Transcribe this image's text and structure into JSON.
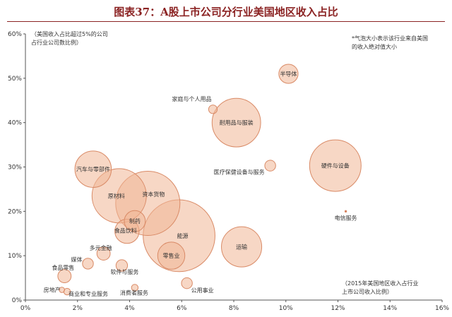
{
  "title": "图表37：A股上市公司分行业美国地区收入占比",
  "chart_data": {
    "type": "scatter",
    "x_ticks": [
      "0%",
      "2%",
      "4%",
      "6%",
      "8%",
      "10%",
      "12%",
      "14%",
      "16%"
    ],
    "y_ticks": [
      "0%",
      "10%",
      "20%",
      "30%",
      "40%",
      "50%",
      "60%"
    ],
    "xlim": [
      0,
      16
    ],
    "ylim": [
      0,
      60
    ],
    "grid": false,
    "annotations": {
      "y_axis_note": [
        "（美国收入占比超过5%的公司",
        "占行业公司数比例）"
      ],
      "size_note": [
        "*气泡大小表示该行业来自美国",
        "的收入绝对值大小"
      ],
      "x_axis_note": [
        "（2015年美国地区收入占行业",
        "上市公司收入比例）"
      ]
    },
    "points": [
      {
        "label": "半导体",
        "x": 10.1,
        "y": 51,
        "size": 2.5
      },
      {
        "label": "家庭与个人用品",
        "x": 7.2,
        "y": 43,
        "size": 0.5
      },
      {
        "label": "耐用品与服装",
        "x": 8.1,
        "y": 40,
        "size": 16
      },
      {
        "label": "医疗保健设备与服务",
        "x": 9.4,
        "y": 30.3,
        "size": 0.8
      },
      {
        "label": "硬件与设备",
        "x": 11.9,
        "y": 30.3,
        "size": 18
      },
      {
        "label": "电信服务",
        "x": 12.3,
        "y": 20,
        "size": 0
      },
      {
        "label": "汽车与零部件",
        "x": 2.6,
        "y": 29.5,
        "size": 9
      },
      {
        "label": "原材料",
        "x": 3.6,
        "y": 23.5,
        "size": 20
      },
      {
        "label": "资本货物",
        "x": 4.7,
        "y": 21.8,
        "size": 28
      },
      {
        "label": "制药",
        "x": 4.2,
        "y": 17.8,
        "size": 3
      },
      {
        "label": "食品饮料",
        "x": 3.9,
        "y": 15.5,
        "size": 4
      },
      {
        "label": "能源",
        "x": 5.9,
        "y": 14.5,
        "size": 35
      },
      {
        "label": "零售业",
        "x": 5.6,
        "y": 10,
        "size": 5
      },
      {
        "label": "运输",
        "x": 8.3,
        "y": 12,
        "size": 11
      },
      {
        "label": "多元金融",
        "x": 3.0,
        "y": 10.5,
        "size": 1.2
      },
      {
        "label": "媒体",
        "x": 2.4,
        "y": 8.2,
        "size": 0.8
      },
      {
        "label": "软件与服务",
        "x": 3.7,
        "y": 7.8,
        "size": 0.9
      },
      {
        "label": "食品零售",
        "x": 1.5,
        "y": 5.4,
        "size": 1.2
      },
      {
        "label": "公用事业",
        "x": 6.2,
        "y": 3.8,
        "size": 0.8
      },
      {
        "label": "房地产",
        "x": 1.4,
        "y": 2.3,
        "size": 0.2
      },
      {
        "label": "商业和专业服务",
        "x": 1.6,
        "y": 1.9,
        "size": 0.3
      },
      {
        "label": "消费者服务",
        "x": 4.2,
        "y": 2.8,
        "size": 0.3
      }
    ]
  }
}
